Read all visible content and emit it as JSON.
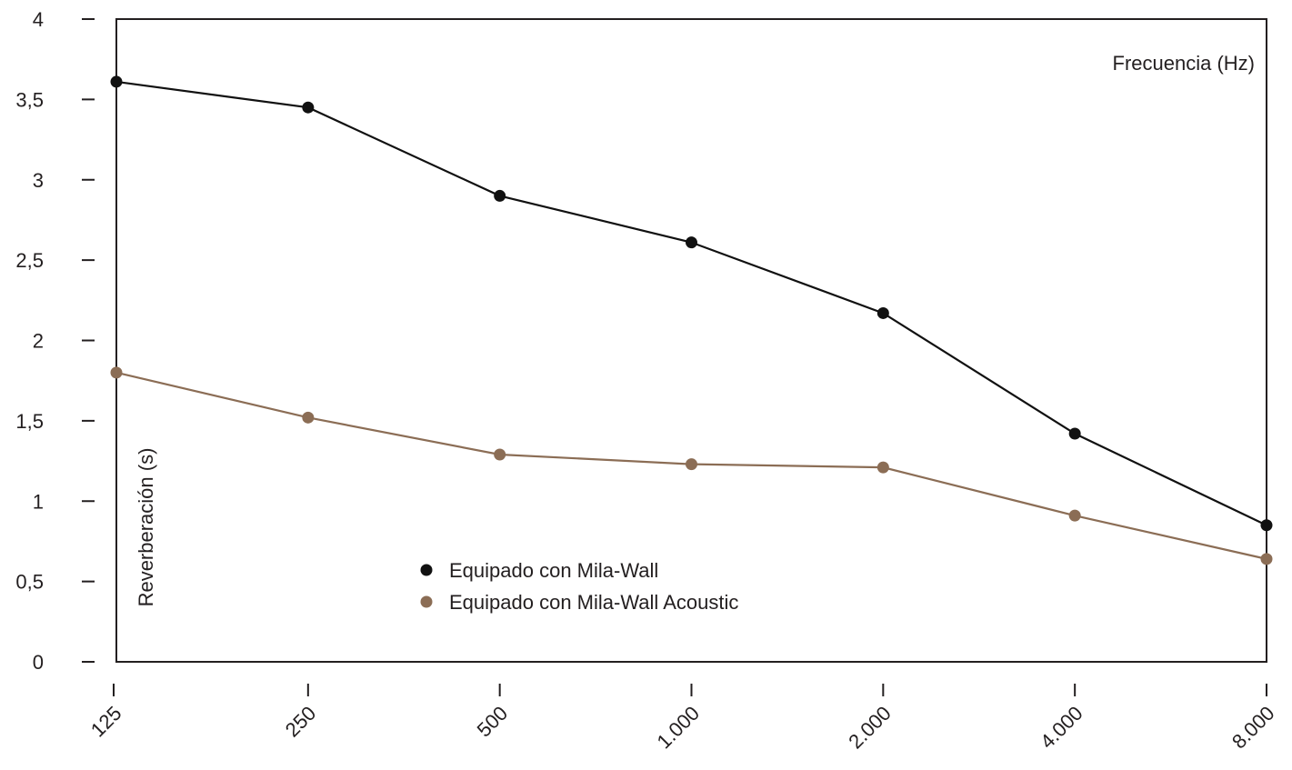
{
  "chart_data": {
    "type": "line",
    "xlabel": "Frecuencia (Hz)",
    "ylabel": "Reverberación (s)",
    "categories": [
      "125",
      "250",
      "500",
      "1.000",
      "2.000",
      "4.000",
      "8.000"
    ],
    "y_ticks": [
      "0",
      "0,5",
      "1",
      "1,5",
      "2",
      "2,5",
      "3",
      "3,5",
      "4"
    ],
    "ylim": [
      0,
      4
    ],
    "grid": false,
    "legend_position": "bottom-center",
    "series": [
      {
        "name": "Equipado con Mila-Wall",
        "color": "#111111",
        "values": [
          3.61,
          3.45,
          2.9,
          2.61,
          2.17,
          1.42,
          0.85
        ]
      },
      {
        "name": "Equipado con Mila-Wall Acoustic",
        "color": "#8b6d55",
        "values": [
          1.8,
          1.52,
          1.29,
          1.23,
          1.21,
          0.91,
          0.64
        ]
      }
    ]
  }
}
